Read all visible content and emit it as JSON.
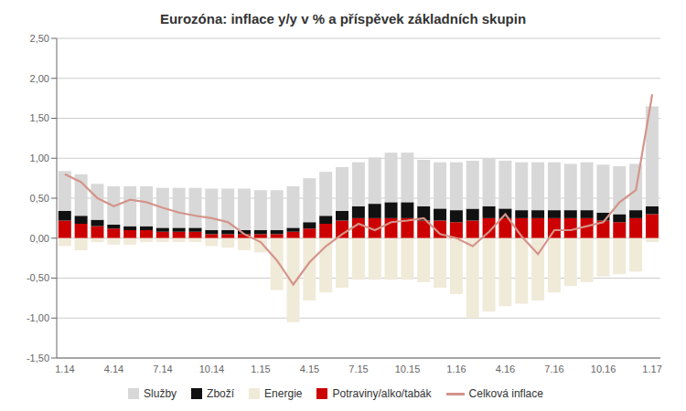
{
  "chart_data": {
    "type": "bar",
    "title": "Eurozóna: inflace y/y v % a příspěvek základních skupin",
    "stacked": true,
    "grid": true,
    "legend": "bottom",
    "categories": [
      "1.14",
      null,
      null,
      "4.14",
      null,
      null,
      "7.14",
      null,
      null,
      "10.14",
      null,
      null,
      "1.15",
      null,
      null,
      "4.15",
      null,
      null,
      "7.15",
      null,
      null,
      "10.15",
      null,
      null,
      "1.16",
      null,
      null,
      "4.16",
      null,
      null,
      "7.16",
      null,
      null,
      "10.16",
      null,
      null,
      "1.17"
    ],
    "ylim": [
      -1.5,
      2.5
    ],
    "yticks": [
      {
        "value": -1.5,
        "label": "-1,50"
      },
      {
        "value": -1.0,
        "label": "-1,00"
      },
      {
        "value": -0.5,
        "label": "-0,50"
      },
      {
        "value": 0.0,
        "label": "0,00"
      },
      {
        "value": 0.5,
        "label": "0,50"
      },
      {
        "value": 1.0,
        "label": "1,00"
      },
      {
        "value": 1.5,
        "label": "1,50"
      },
      {
        "value": 2.0,
        "label": "2,00"
      },
      {
        "value": 2.5,
        "label": "2,50"
      }
    ],
    "series": [
      {
        "name": "Služby",
        "type": "bar",
        "color": "#d8d8d8",
        "values": [
          0.5,
          0.52,
          0.45,
          0.48,
          0.5,
          0.5,
          0.5,
          0.5,
          0.5,
          0.52,
          0.52,
          0.52,
          0.5,
          0.5,
          0.52,
          0.55,
          0.55,
          0.55,
          0.55,
          0.58,
          0.62,
          0.62,
          0.58,
          0.58,
          0.6,
          0.6,
          0.6,
          0.6,
          0.6,
          0.6,
          0.6,
          0.58,
          0.6,
          0.6,
          0.6,
          0.58,
          1.25
        ]
      },
      {
        "name": "Zboží",
        "type": "bar",
        "color": "#111111",
        "values": [
          0.12,
          0.1,
          0.08,
          0.05,
          0.05,
          0.05,
          0.05,
          0.05,
          0.05,
          0.05,
          0.05,
          0.05,
          0.05,
          0.05,
          0.05,
          0.08,
          0.1,
          0.12,
          0.15,
          0.18,
          0.2,
          0.2,
          0.18,
          0.15,
          0.15,
          0.15,
          0.15,
          0.12,
          0.1,
          0.1,
          0.1,
          0.1,
          0.1,
          0.1,
          0.1,
          0.1,
          0.1
        ]
      },
      {
        "name": "Energie",
        "type": "bar",
        "color": "#f0ead8",
        "values": [
          -0.1,
          -0.15,
          -0.05,
          -0.08,
          -0.08,
          -0.05,
          -0.05,
          -0.05,
          -0.05,
          -0.1,
          -0.12,
          -0.15,
          -0.18,
          -0.65,
          -1.05,
          -0.78,
          -0.68,
          -0.62,
          -0.52,
          -0.52,
          -0.52,
          -0.52,
          -0.55,
          -0.62,
          -0.7,
          -1.0,
          -0.92,
          -0.85,
          -0.82,
          -0.78,
          -0.68,
          -0.6,
          -0.55,
          -0.48,
          -0.45,
          -0.42,
          -0.05
        ]
      },
      {
        "name": "Potraviny/alko/tabák",
        "type": "bar",
        "color": "#cc0000",
        "values": [
          0.22,
          0.18,
          0.15,
          0.12,
          0.1,
          0.1,
          0.08,
          0.08,
          0.08,
          0.05,
          0.05,
          0.05,
          0.05,
          0.05,
          0.08,
          0.12,
          0.18,
          0.22,
          0.25,
          0.25,
          0.25,
          0.25,
          0.22,
          0.22,
          0.2,
          0.22,
          0.25,
          0.25,
          0.25,
          0.25,
          0.25,
          0.25,
          0.25,
          0.22,
          0.2,
          0.25,
          0.3
        ]
      },
      {
        "name": "Celková inflace",
        "type": "line",
        "color": "#d4948a",
        "values": [
          0.8,
          0.7,
          0.5,
          0.4,
          0.48,
          0.45,
          0.38,
          0.32,
          0.28,
          0.25,
          0.2,
          0.05,
          -0.05,
          -0.28,
          -0.58,
          -0.3,
          -0.1,
          0.05,
          0.18,
          0.1,
          0.2,
          0.22,
          0.25,
          0.05,
          0.0,
          -0.1,
          0.08,
          0.3,
          0.02,
          -0.2,
          0.1,
          0.1,
          0.15,
          0.2,
          0.45,
          0.6,
          1.8
        ]
      }
    ]
  }
}
